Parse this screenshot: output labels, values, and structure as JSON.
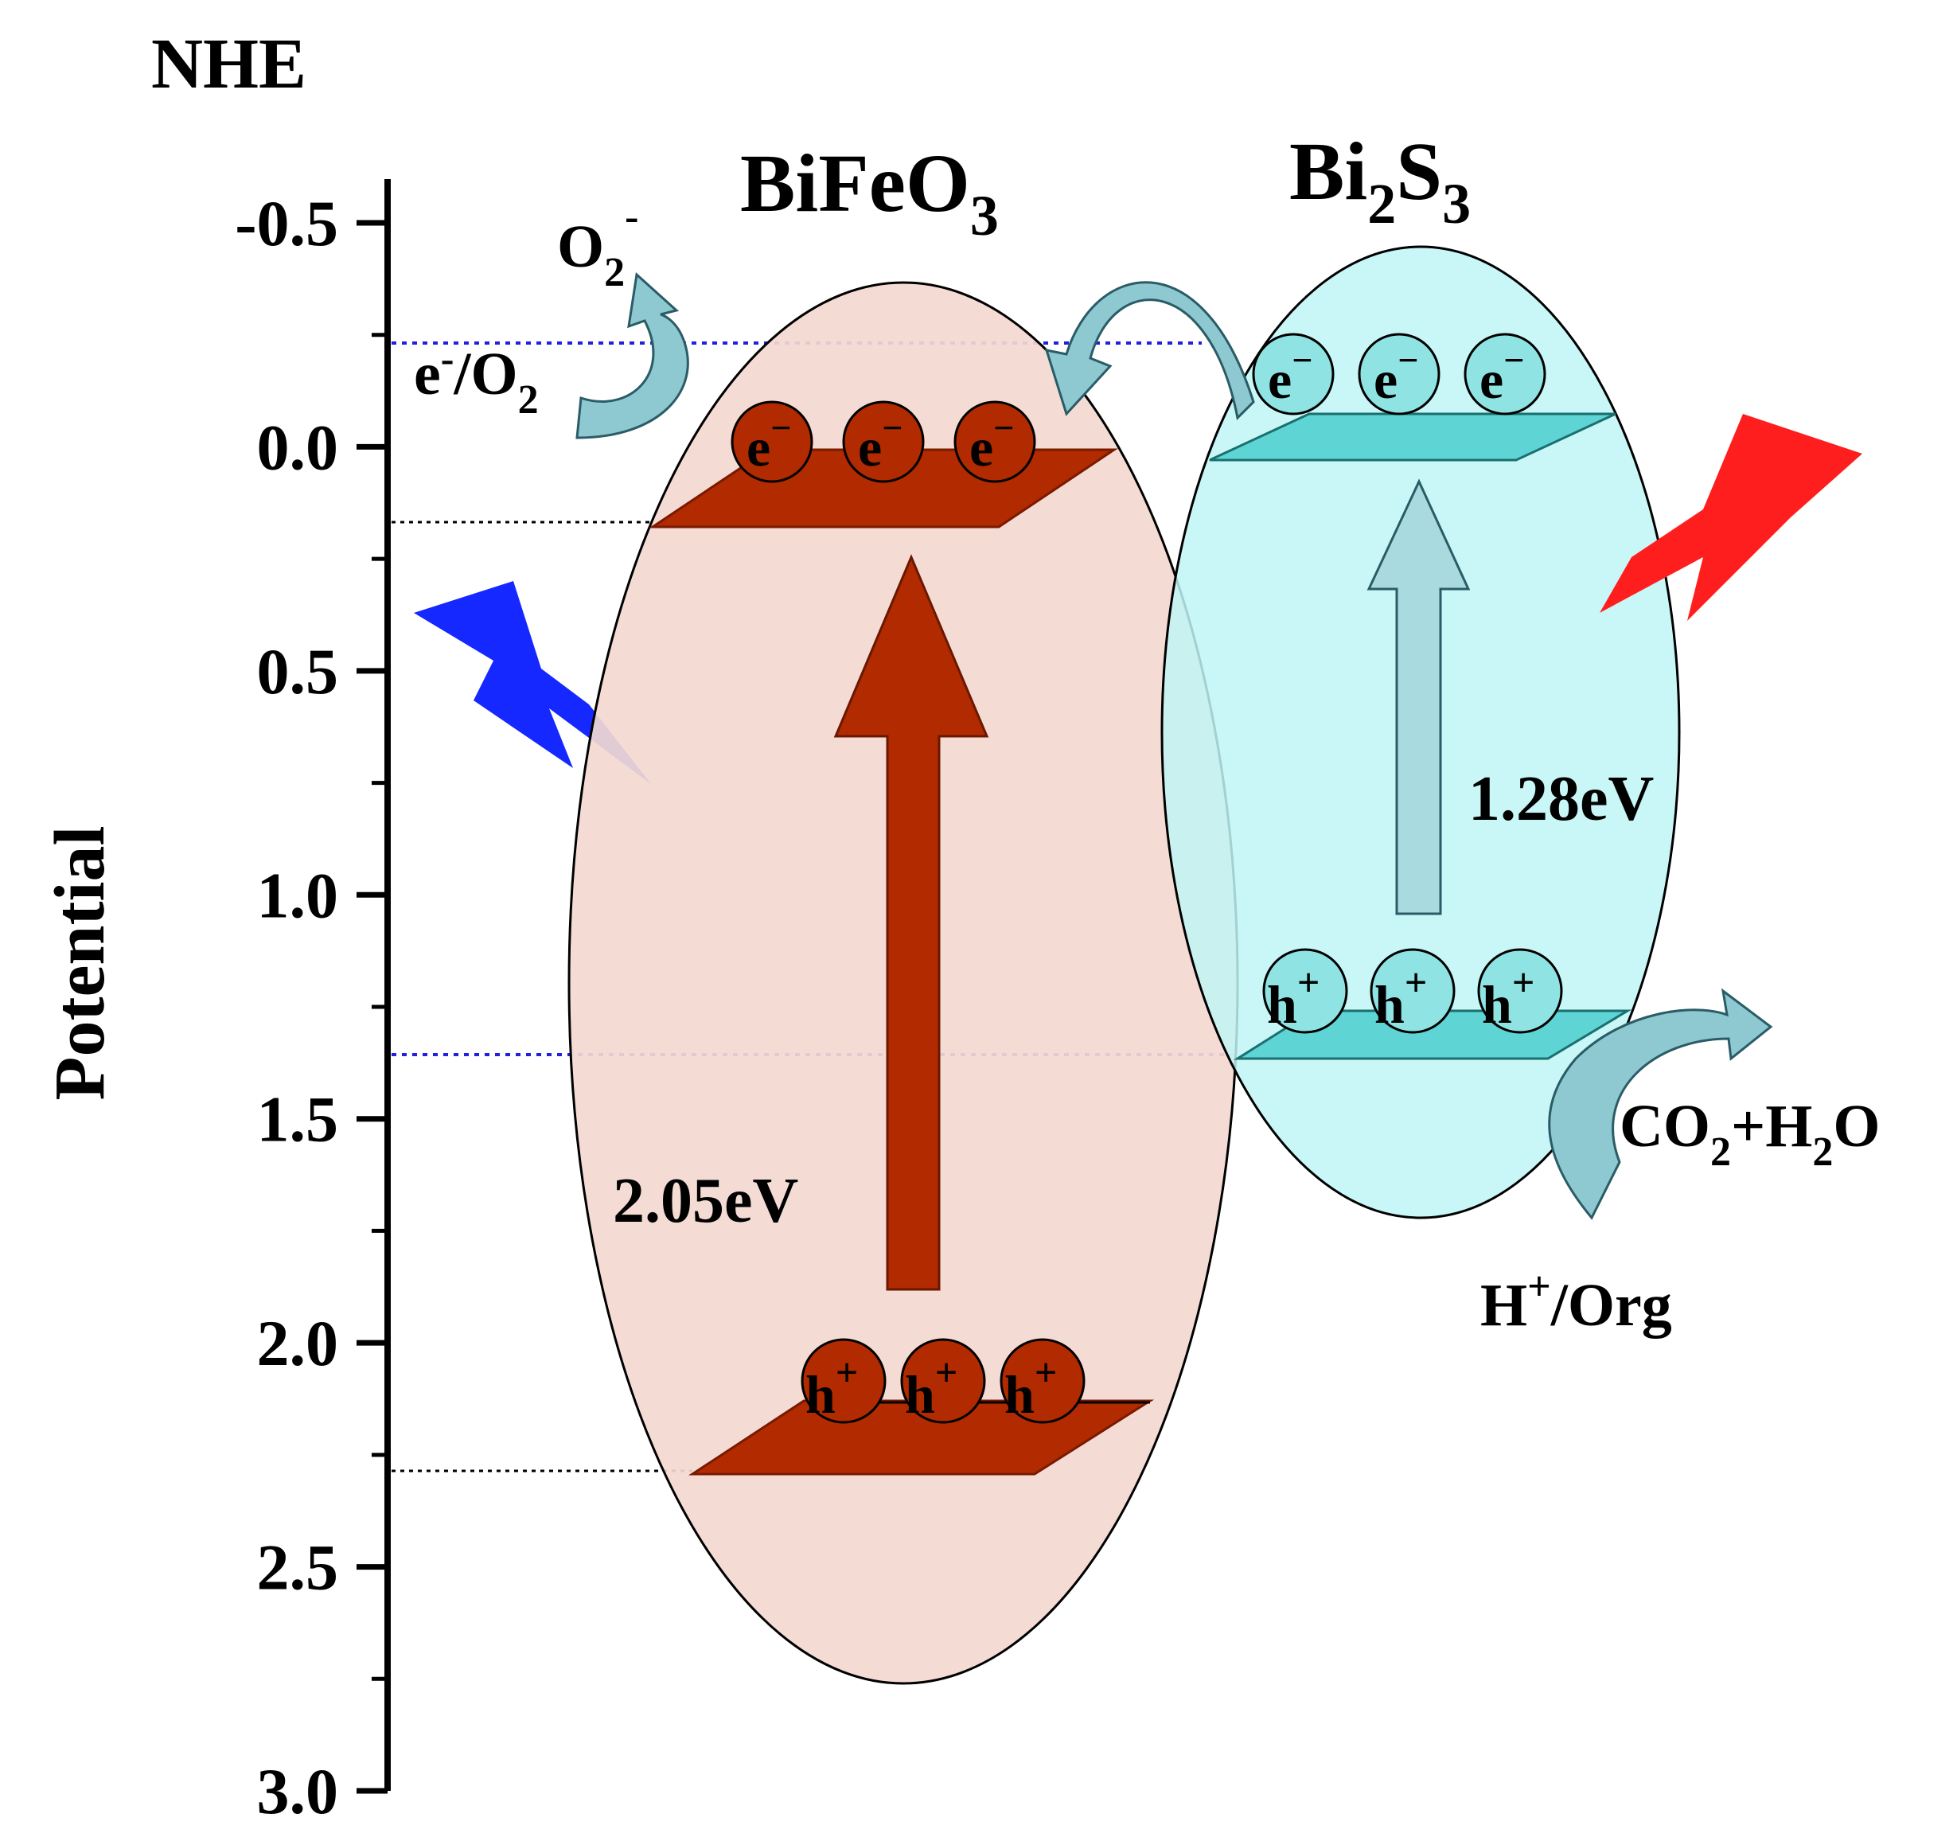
{
  "axis": {
    "title": "NHE",
    "label": "Potential",
    "ticks": [
      "-0.5",
      "0.0",
      "0.5",
      "1.0",
      "1.5",
      "2.0",
      "2.5",
      "3.0"
    ]
  },
  "bifeo3": {
    "name": "BiFeO",
    "sub": "3",
    "gap": "2.05eV",
    "electron": "e",
    "electron_sup": "−",
    "hole": "h",
    "hole_sup": "+"
  },
  "bi2s3": {
    "name_a": "Bi",
    "sub_a": "2",
    "name_b": "S",
    "sub_b": "3",
    "gap": "1.28eV",
    "electron": "e",
    "electron_sup": "−",
    "hole": "h",
    "hole_sup": "+"
  },
  "reactions": {
    "o2_radical": "O",
    "o2_radical_sub": "2",
    "o2_radical_sup": "-",
    "e_o2_a": "e",
    "e_o2_sup": "-",
    "e_o2_b": "/O",
    "e_o2_sub": "2",
    "co2_a": "CO",
    "co2_sub": "2",
    "co2_b": "+H",
    "h2o_sub": "2",
    "co2_c": "O",
    "h_org_a": "H",
    "h_org_sup": "+",
    "h_org_b": "/Org"
  },
  "colors": {
    "bifeo3_fill": "#f3d9d1",
    "bifeo3_band": "#b12a00",
    "bi2s3_fill": "#bff5f5",
    "bi2s3_band": "#5fd4d4",
    "arrow_teal": "#8ec8d0",
    "blue_bolt": "#1428ff",
    "red_bolt": "#ff1e1e",
    "dotted_blue": "#2020e0"
  }
}
